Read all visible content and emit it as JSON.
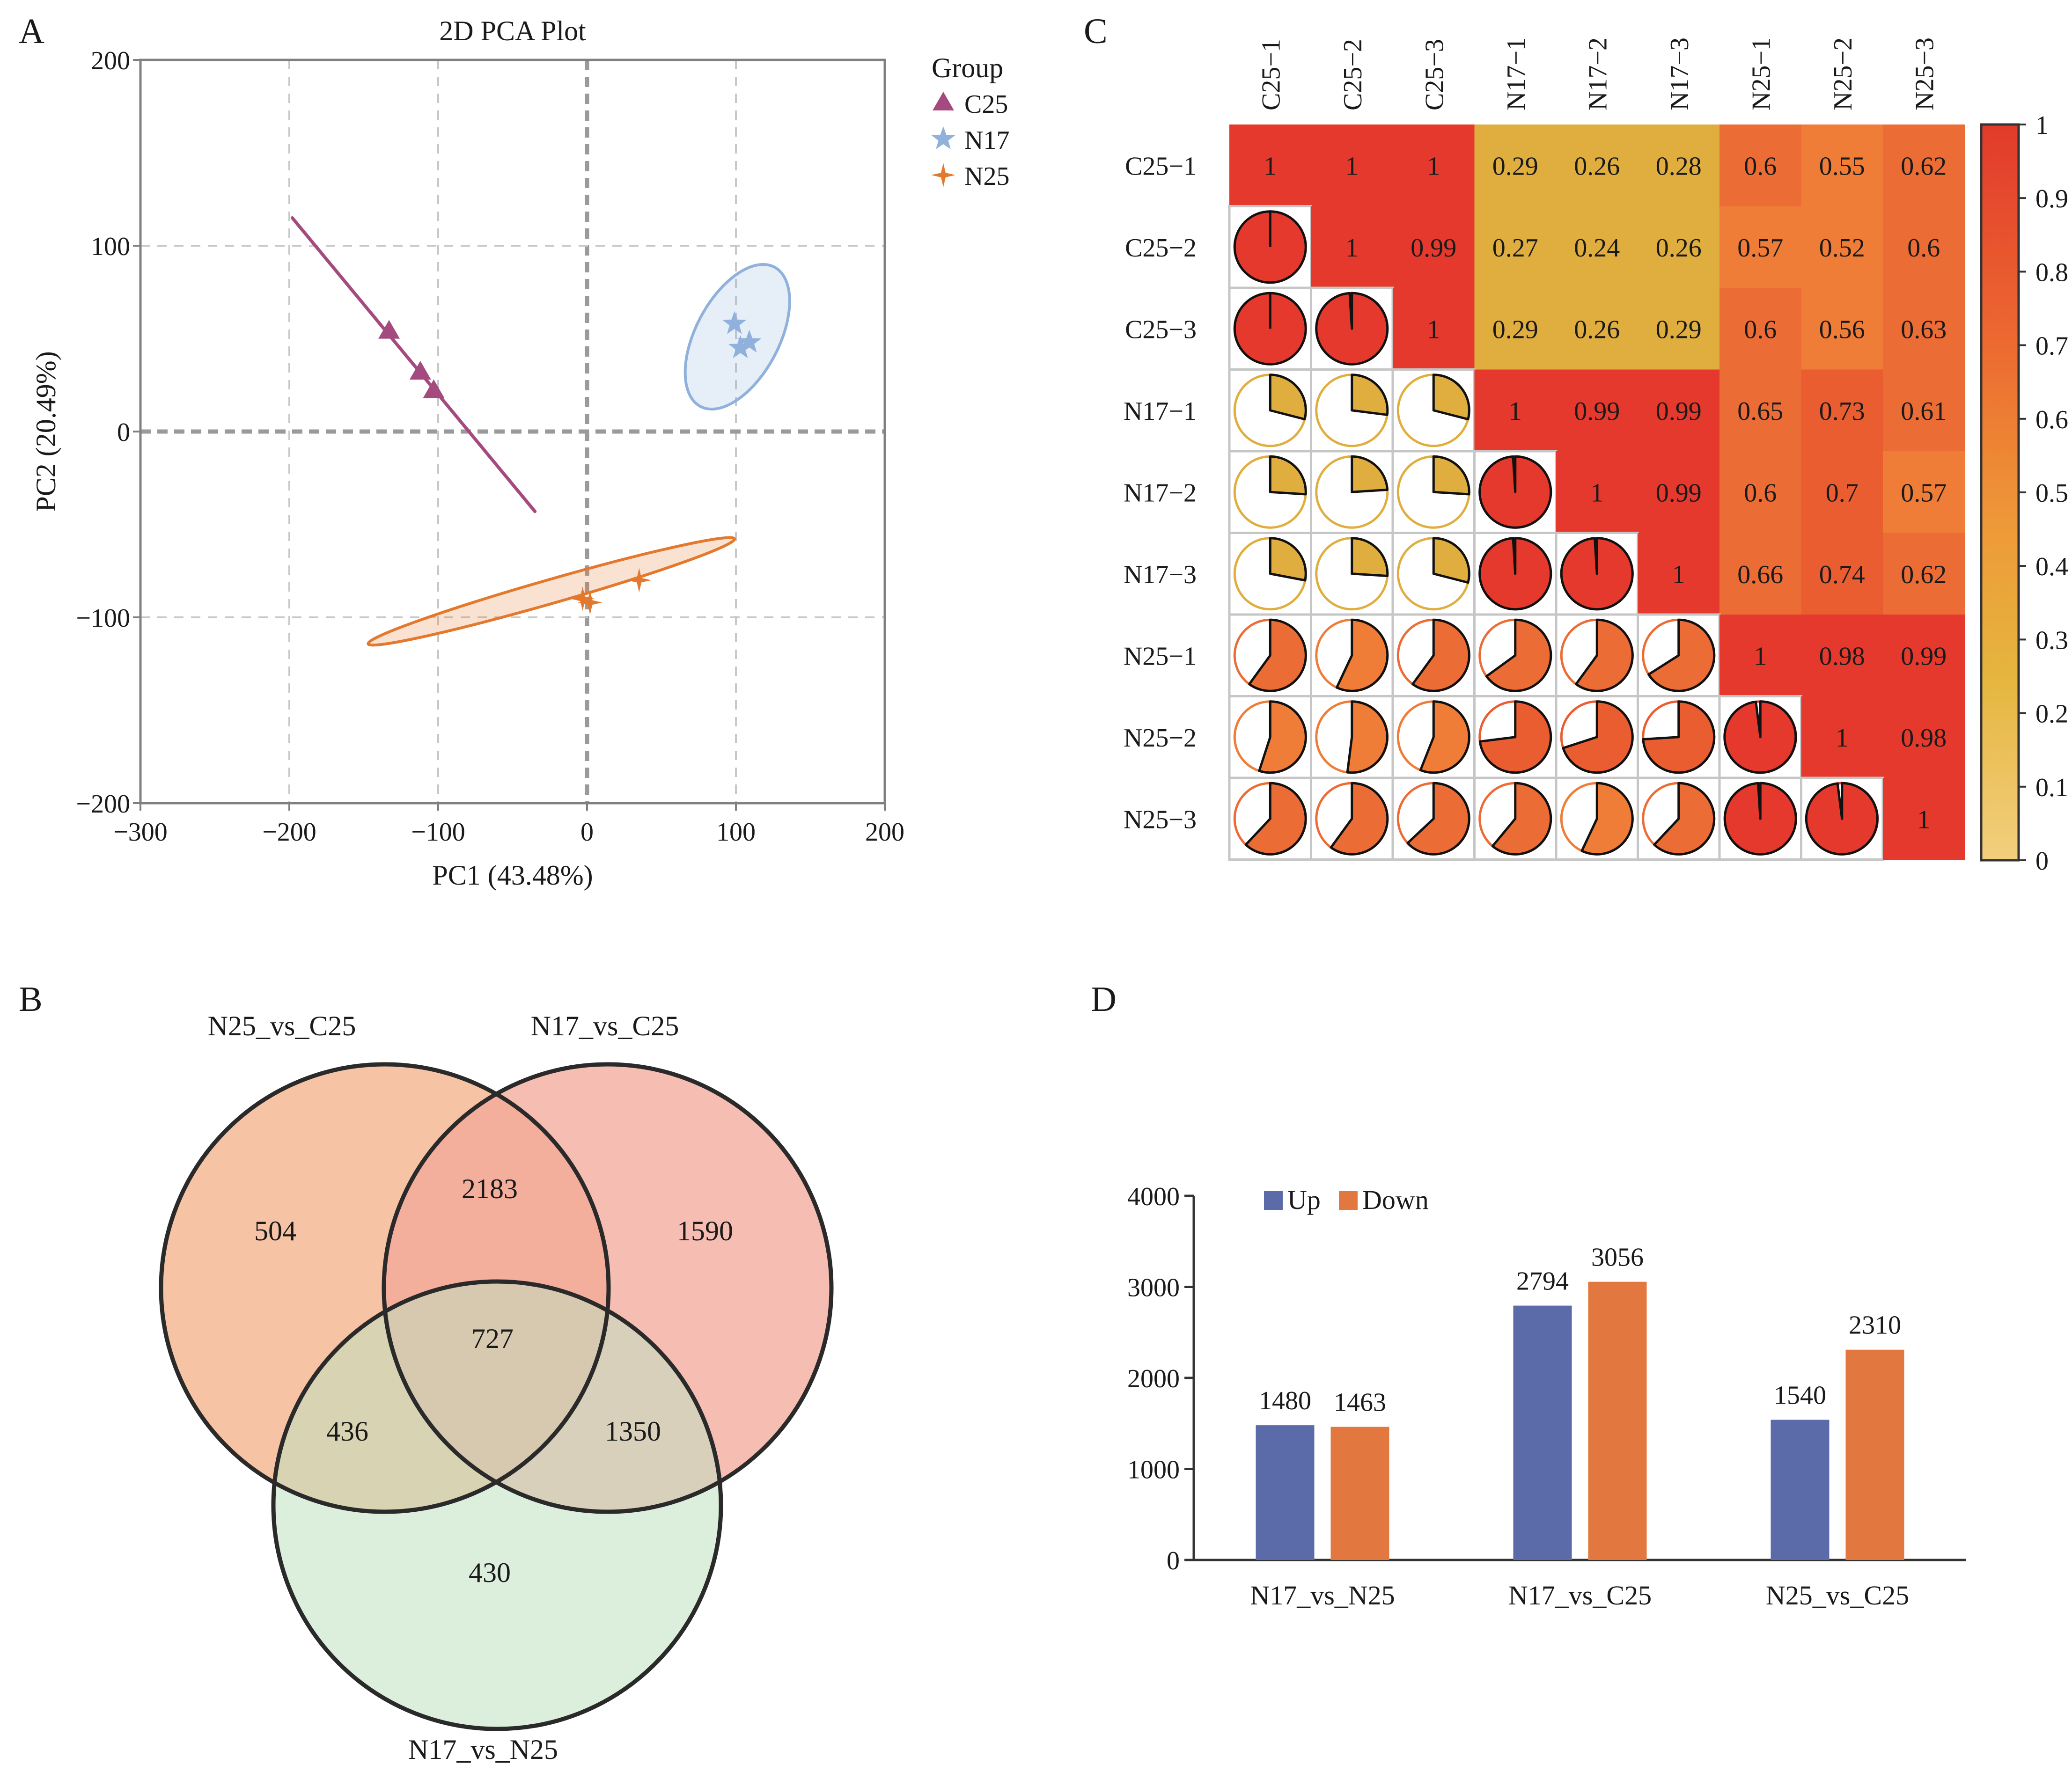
{
  "panel_labels": {
    "a": "A",
    "b": "B",
    "c": "C",
    "d": "D"
  },
  "colors": {
    "c25": "#a44a7f",
    "n17": "#8fb1dc",
    "n25": "#e4792e",
    "up": "#5b6aa8",
    "down": "#e2783f",
    "venn_a": "#f6c0a0",
    "venn_b": "#f3a79a",
    "venn_c": "#bfe0bf",
    "grid": "#c8c8c8",
    "axis": "#808080"
  },
  "chart_data": [
    {
      "id": "pca",
      "type": "scatter",
      "title": "2D  PCA  Plot",
      "xlabel": "PC1  (43.48%)",
      "ylabel": "PC2  (20.49%)",
      "xlim": [
        -300,
        200
      ],
      "ylim": [
        -200,
        200
      ],
      "xticks": [
        -300,
        -200,
        -100,
        0,
        100,
        200
      ],
      "yticks": [
        -200,
        -100,
        0,
        100,
        200
      ],
      "xtick_labels": [
        "−300",
        "−200",
        "−100",
        "0",
        "100",
        "200"
      ],
      "ytick_labels": [
        "−200",
        "−100",
        "0",
        "100",
        "200"
      ],
      "legend_title": "Group",
      "series": [
        {
          "name": "C25",
          "marker": "triangle",
          "color": "#a44a7f",
          "points": [
            [
              -133,
              54
            ],
            [
              -112,
              32
            ],
            [
              -103,
              22
            ]
          ],
          "ellipse_line": [
            [
              -198,
              115
            ],
            [
              -35,
              -43
            ]
          ]
        },
        {
          "name": "N17",
          "marker": "star",
          "color": "#8fb1dc",
          "points": [
            [
              99,
              58
            ],
            [
              103,
              45
            ],
            [
              109,
              48
            ]
          ],
          "ellipse": {
            "cx": 101,
            "cy": 51,
            "rx": 53,
            "ry": 28,
            "angle_deg": 62
          }
        },
        {
          "name": "N25",
          "marker": "cross",
          "color": "#e4792e",
          "points": [
            [
              -3,
              -90
            ],
            [
              2,
              -92
            ],
            [
              35,
              -80
            ]
          ],
          "ellipse": {
            "cx": -24,
            "cy": -86,
            "rx": 128,
            "ry": 8,
            "angle_deg": 16
          }
        }
      ]
    },
    {
      "id": "correlation",
      "type": "heatmap",
      "labels": [
        "C25−1",
        "C25−2",
        "C25−3",
        "N17−1",
        "N17−2",
        "N17−3",
        "N25−1",
        "N25−2",
        "N25−3"
      ],
      "values": [
        [
          1,
          1,
          1,
          0.29,
          0.26,
          0.28,
          0.6,
          0.55,
          0.62
        ],
        [
          1,
          1,
          0.99,
          0.27,
          0.24,
          0.26,
          0.57,
          0.52,
          0.6
        ],
        [
          1,
          0.99,
          1,
          0.29,
          0.26,
          0.29,
          0.6,
          0.56,
          0.63
        ],
        [
          0.29,
          0.27,
          0.29,
          1,
          0.99,
          0.99,
          0.65,
          0.73,
          0.61
        ],
        [
          0.26,
          0.24,
          0.26,
          0.99,
          1,
          0.99,
          0.6,
          0.7,
          0.57
        ],
        [
          0.28,
          0.26,
          0.29,
          0.99,
          0.99,
          1,
          0.66,
          0.74,
          0.62
        ],
        [
          0.6,
          0.57,
          0.6,
          0.65,
          0.6,
          0.66,
          1,
          0.98,
          0.99
        ],
        [
          0.55,
          0.52,
          0.56,
          0.73,
          0.7,
          0.74,
          0.98,
          1,
          0.98
        ],
        [
          0.62,
          0.6,
          0.63,
          0.61,
          0.57,
          0.62,
          0.99,
          0.98,
          1
        ]
      ],
      "colorbar_ticks": [
        0,
        0.1,
        0.2,
        0.3,
        0.4,
        0.5,
        0.6,
        0.7,
        0.8,
        0.9,
        1
      ],
      "colorbar_labels": [
        "0",
        "0.1",
        "0.2",
        "0.3",
        "0.4",
        "0.5",
        "0.6",
        "0.7",
        "0.8",
        "0.9",
        "1"
      ],
      "colorbar_range": [
        0,
        1
      ]
    },
    {
      "id": "venn",
      "type": "venn",
      "sets": [
        "N25_vs_C25",
        "N17_vs_C25",
        "N17_vs_N25"
      ],
      "regions": {
        "only_N25_vs_C25": "504",
        "only_N17_vs_C25": "1590",
        "only_N17_vs_N25": "430",
        "N25C25_and_N17C25": "2183",
        "N25C25_and_N17N25": "436",
        "N17C25_and_N17N25": "1350",
        "all_three": "727"
      }
    },
    {
      "id": "deg_bar",
      "type": "bar",
      "categories": [
        "N17_vs_N25",
        "N17_vs_C25",
        "N25_vs_C25"
      ],
      "series": [
        {
          "name": "Up",
          "values": [
            1480,
            2794,
            1540
          ],
          "color": "#5b6aa8"
        },
        {
          "name": "Down",
          "values": [
            1463,
            3056,
            2310
          ],
          "color": "#e2783f"
        }
      ],
      "ylim": [
        0,
        4000
      ],
      "yticks": [
        0,
        1000,
        2000,
        3000,
        4000
      ],
      "ytick_labels": [
        "0",
        "1000",
        "2000",
        "3000",
        "4000"
      ],
      "legend_position": "top-left"
    }
  ]
}
